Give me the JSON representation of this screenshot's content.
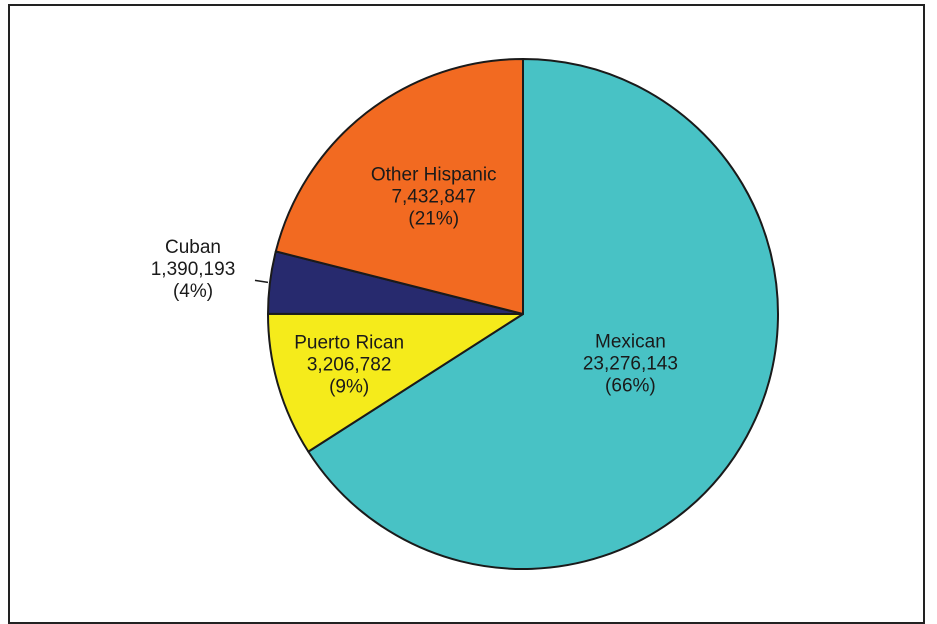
{
  "chart_data": {
    "type": "pie",
    "title": "",
    "slices": [
      {
        "label": "Mexican",
        "value": 23276143,
        "value_text": "23,276,143",
        "percent_text": "(66%)",
        "color": "#48C2C5"
      },
      {
        "label": "Puerto Rican",
        "value": 3206782,
        "value_text": "3,206,782",
        "percent_text": "(9%)",
        "color": "#F5EB1B"
      },
      {
        "label": "Cuban",
        "value": 1390193,
        "value_text": "1,390,193",
        "percent_text": "(4%)",
        "color": "#272A6E"
      },
      {
        "label": "Other Hispanic",
        "value": 7432847,
        "value_text": "7,432,847",
        "percent_text": "(21%)",
        "color": "#F26A21"
      }
    ],
    "start": "top",
    "direction": "clockwise",
    "legend": "none",
    "border_color": "#222222"
  }
}
